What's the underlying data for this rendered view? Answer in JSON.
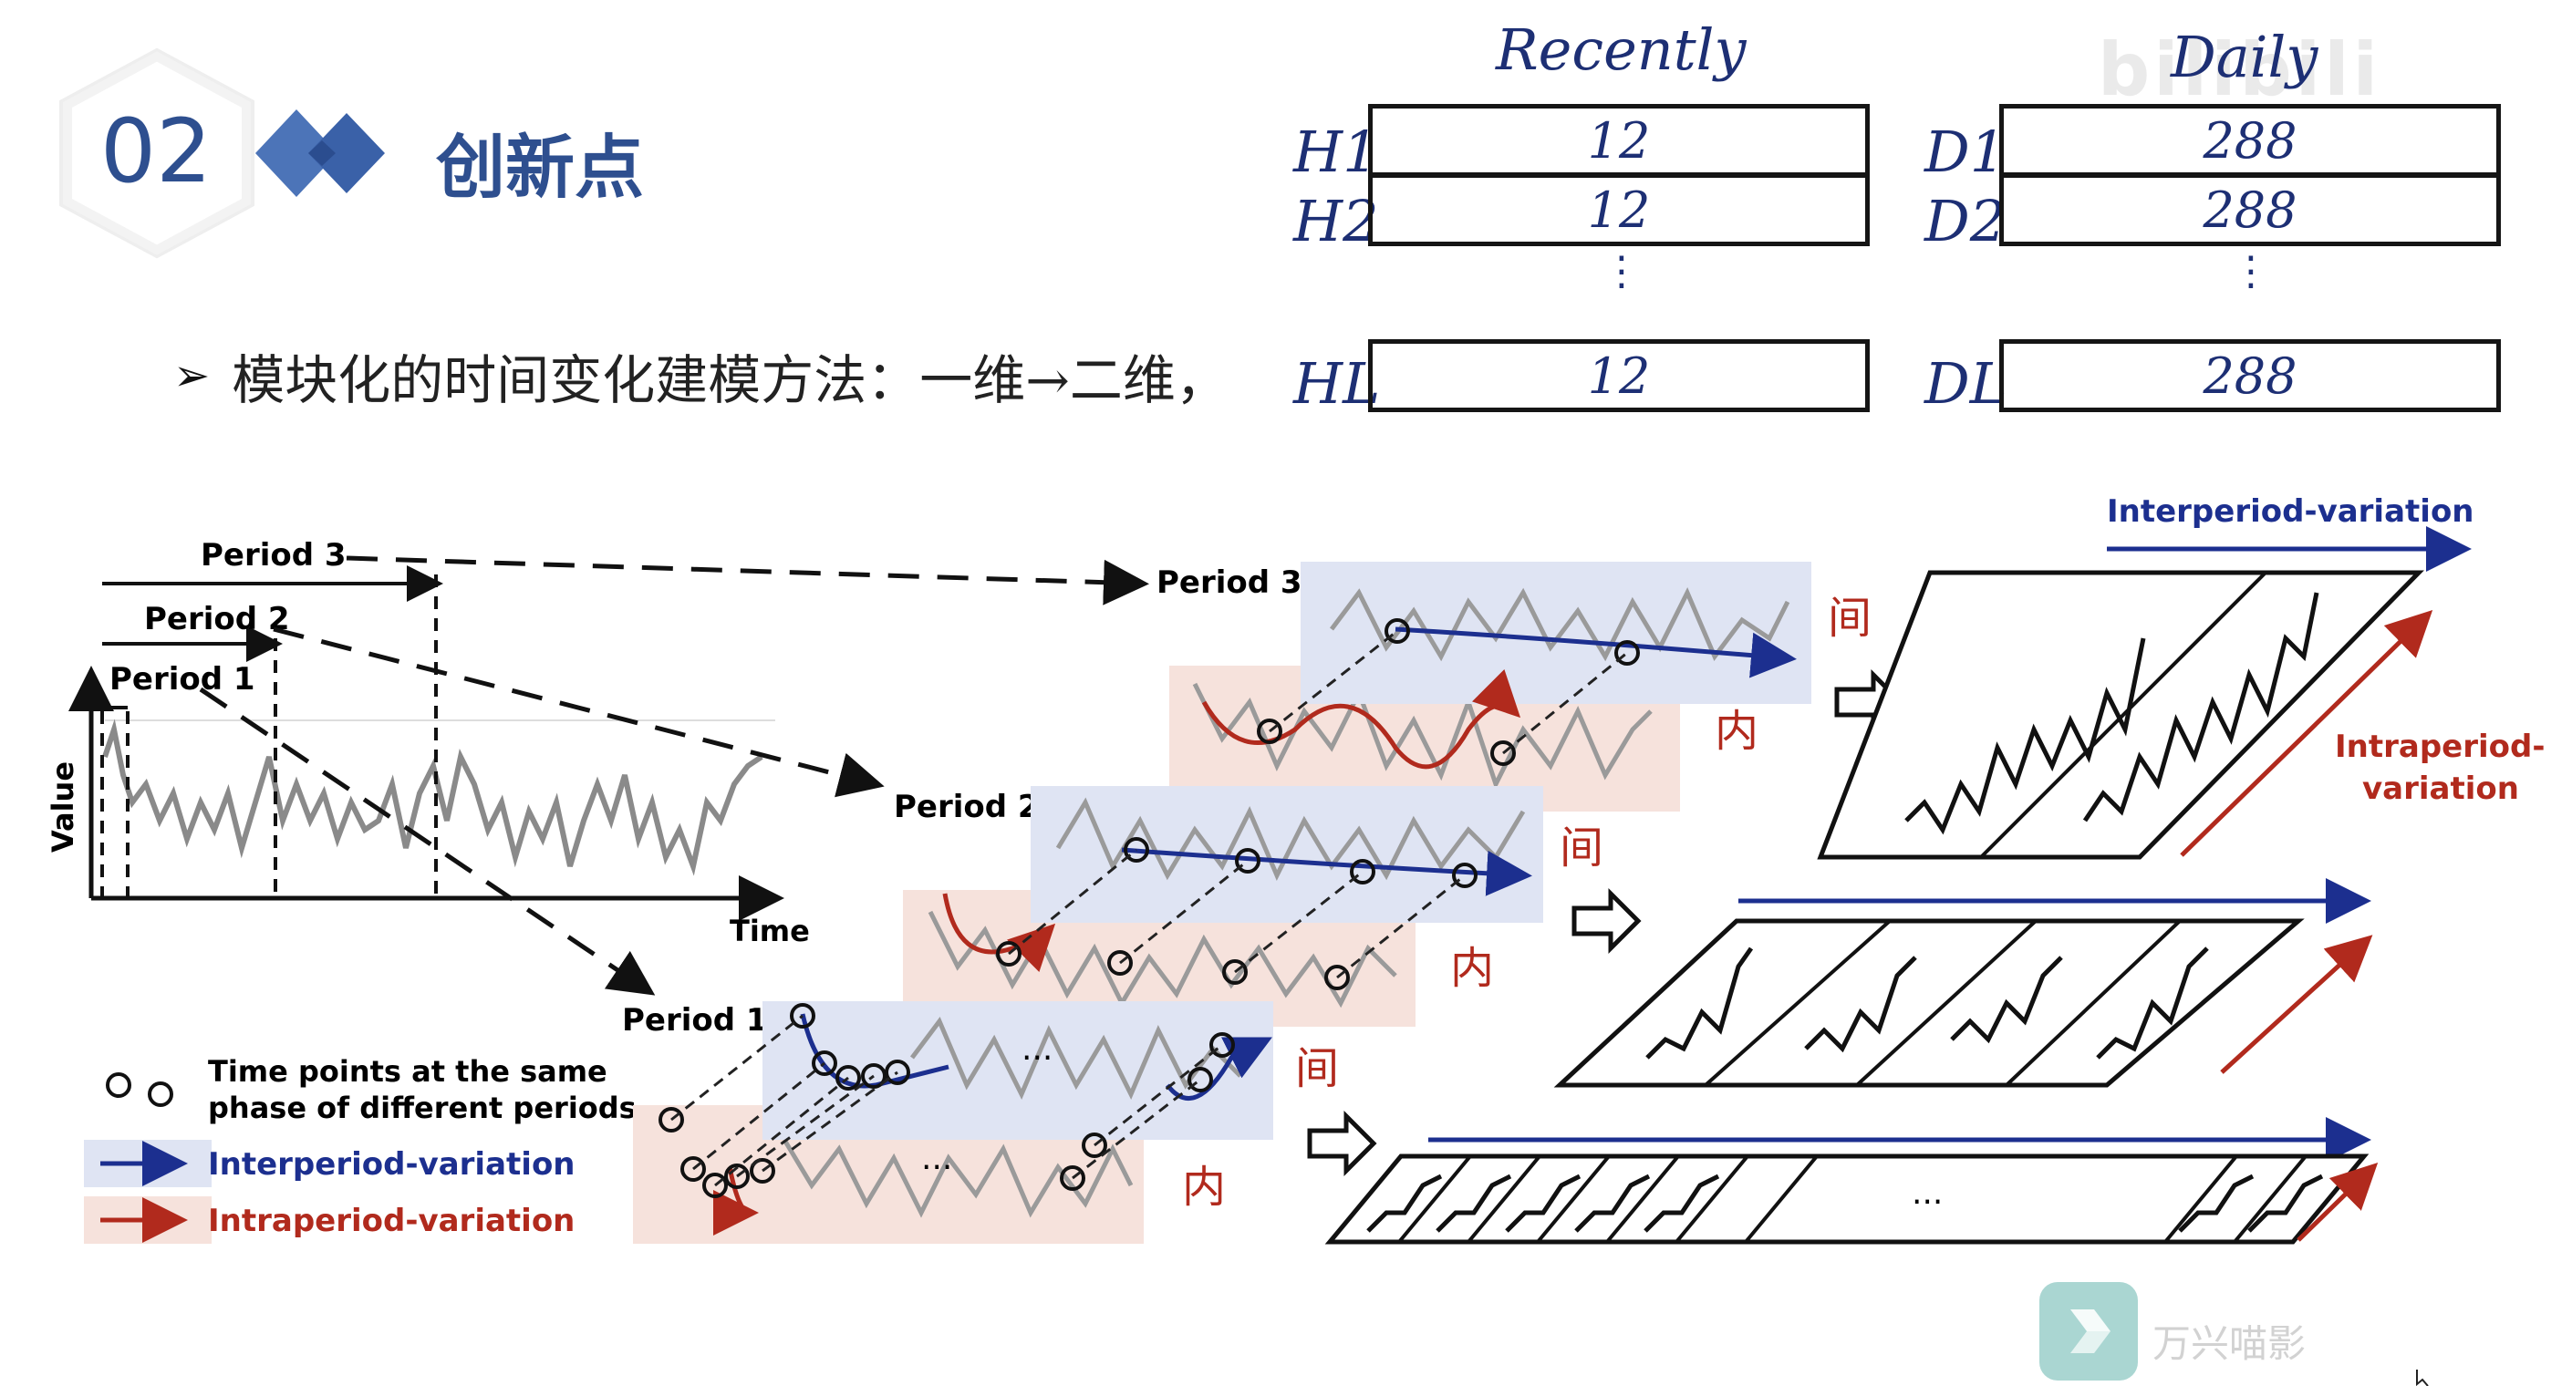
{
  "header": {
    "section_number": "02",
    "section_title": "创新点"
  },
  "bullet": {
    "text": "模块化的时间变化建模方法：一维→二维，"
  },
  "handwritten_table": {
    "col_recently": "Recently",
    "col_daily": "Daily",
    "rows": [
      {
        "h_label": "H1",
        "h_value": "12",
        "d_label": "D1",
        "d_value": "288"
      },
      {
        "h_label": "H2",
        "h_value": "12",
        "d_label": "D2",
        "d_value": "288"
      },
      {
        "h_label": "HL",
        "h_value": "12",
        "d_label": "DL",
        "d_value": "288"
      }
    ],
    "ellipsis": "⋮"
  },
  "figure": {
    "period_labels": [
      "Period 3",
      "Period 2",
      "Period 1"
    ],
    "axis_value": "Value",
    "axis_time": "Time",
    "legend": {
      "circles": "Time points at the same",
      "circles_line2": "phase of different periods",
      "inter": "Interperiod-variation",
      "intra": "Intraperiod-variation"
    },
    "tag_inter": "间",
    "tag_intra": "内",
    "right_top_label": "Interperiod-variation",
    "right_side_label_1": "Intraperiod-",
    "right_side_label_2": "variation",
    "ellipsis": "...",
    "colors": {
      "blue_band": "#dfe4f3",
      "red_band": "#f6e2dc",
      "blue_arrow": "#1c2f8f",
      "red_arrow": "#b12a1d",
      "grey_line": "#8a8a8a"
    }
  },
  "watermark": {
    "text": "万兴喵影",
    "brand": "bilibili"
  }
}
